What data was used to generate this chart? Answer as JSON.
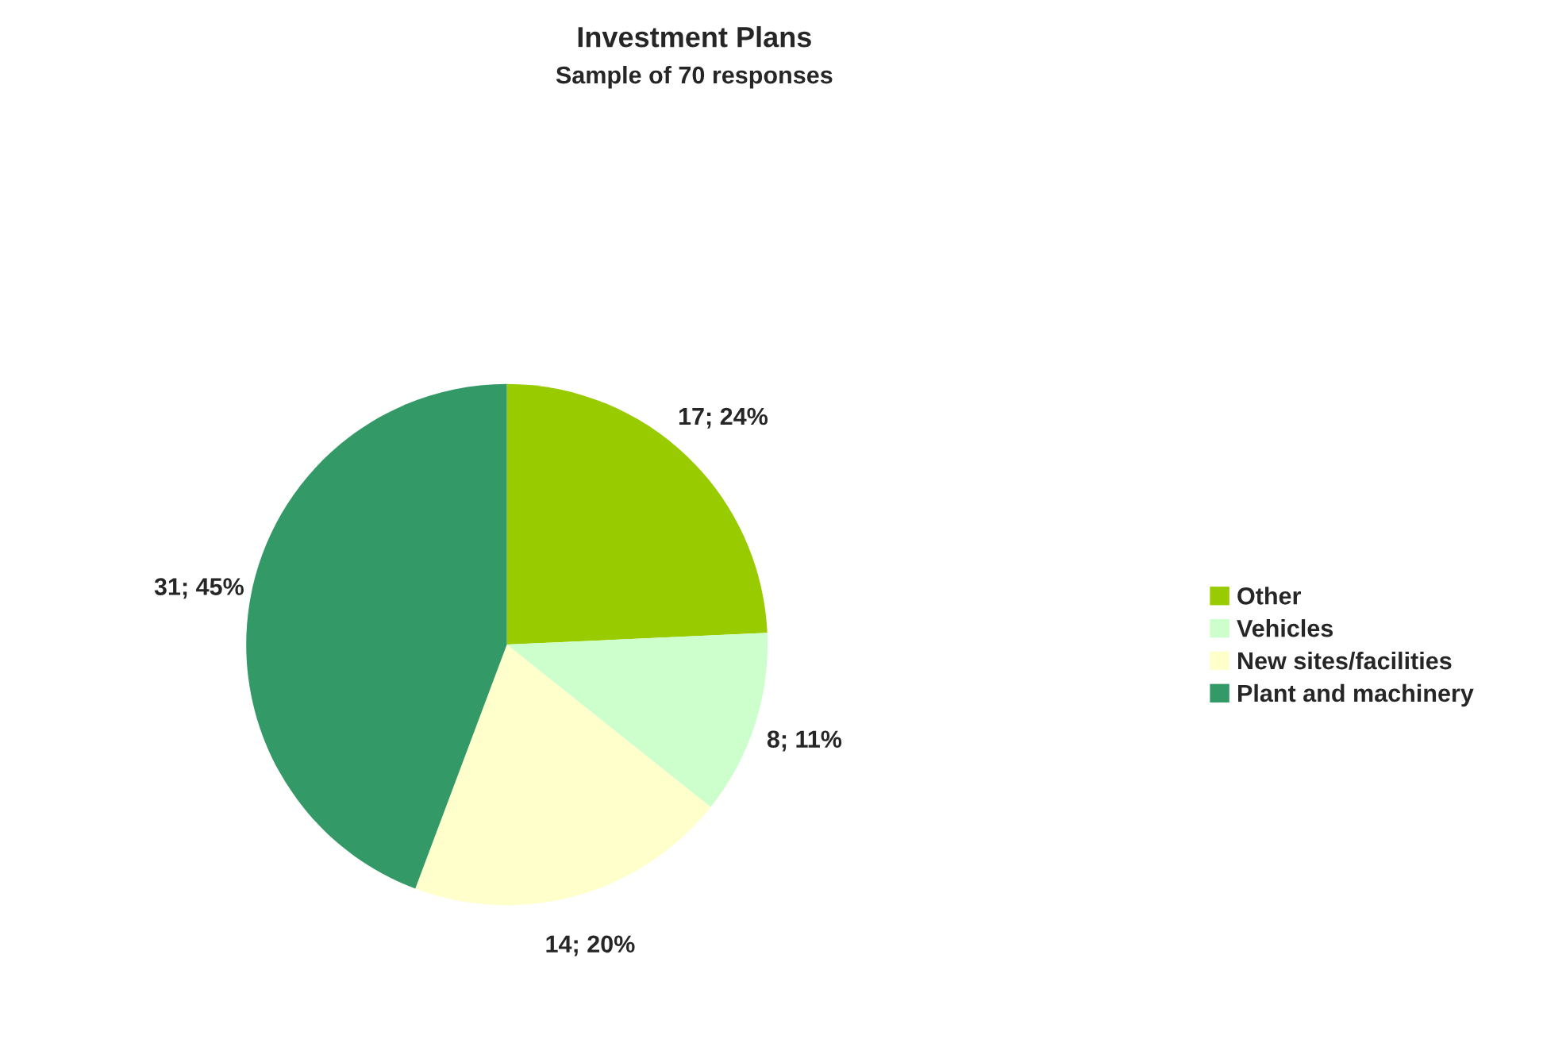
{
  "chart_data": {
    "type": "pie",
    "title": "Investment Plans",
    "subtitle": "Sample of 70 responses",
    "categories": [
      "Other",
      "Vehicles",
      "New sites/facilities",
      "Plant and machinery"
    ],
    "values": [
      17,
      8,
      14,
      31
    ],
    "colors": [
      "#99cc00",
      "#ccffcc",
      "#ffffcc",
      "#339966"
    ],
    "value_labels": [
      "17; 24%",
      "8; 11%",
      "14; 20%",
      "31; 45%"
    ],
    "legend": "right"
  }
}
